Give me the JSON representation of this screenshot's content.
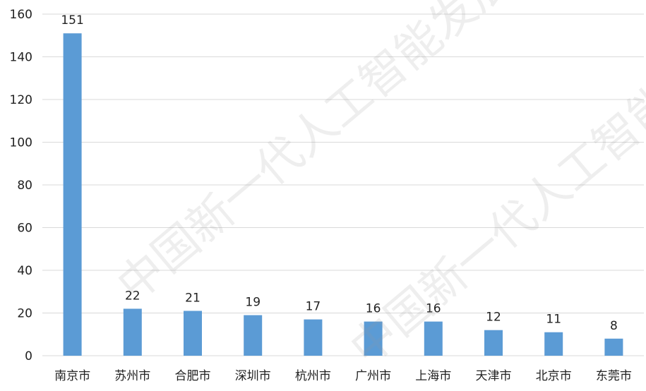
{
  "chart_data": {
    "type": "bar",
    "categories": [
      "南京市",
      "苏州市",
      "合肥市",
      "深圳市",
      "杭州市",
      "广州市",
      "上海市",
      "天津市",
      "北京市",
      "东莞市"
    ],
    "values": [
      151,
      22,
      21,
      19,
      17,
      16,
      16,
      12,
      11,
      8
    ],
    "data_labels": [
      "151",
      "22",
      "21",
      "19",
      "17",
      "16",
      "16",
      "12",
      "11",
      "8"
    ],
    "ylim": [
      0,
      160
    ],
    "yticks": [
      0,
      20,
      40,
      60,
      80,
      100,
      120,
      140,
      160
    ],
    "grid": true,
    "legend": "none",
    "bar_color": "#5b9bd5"
  },
  "watermark": {
    "line1": "中国新一代人工智能发展",
    "line2": "中国新一代人工智能发展"
  }
}
